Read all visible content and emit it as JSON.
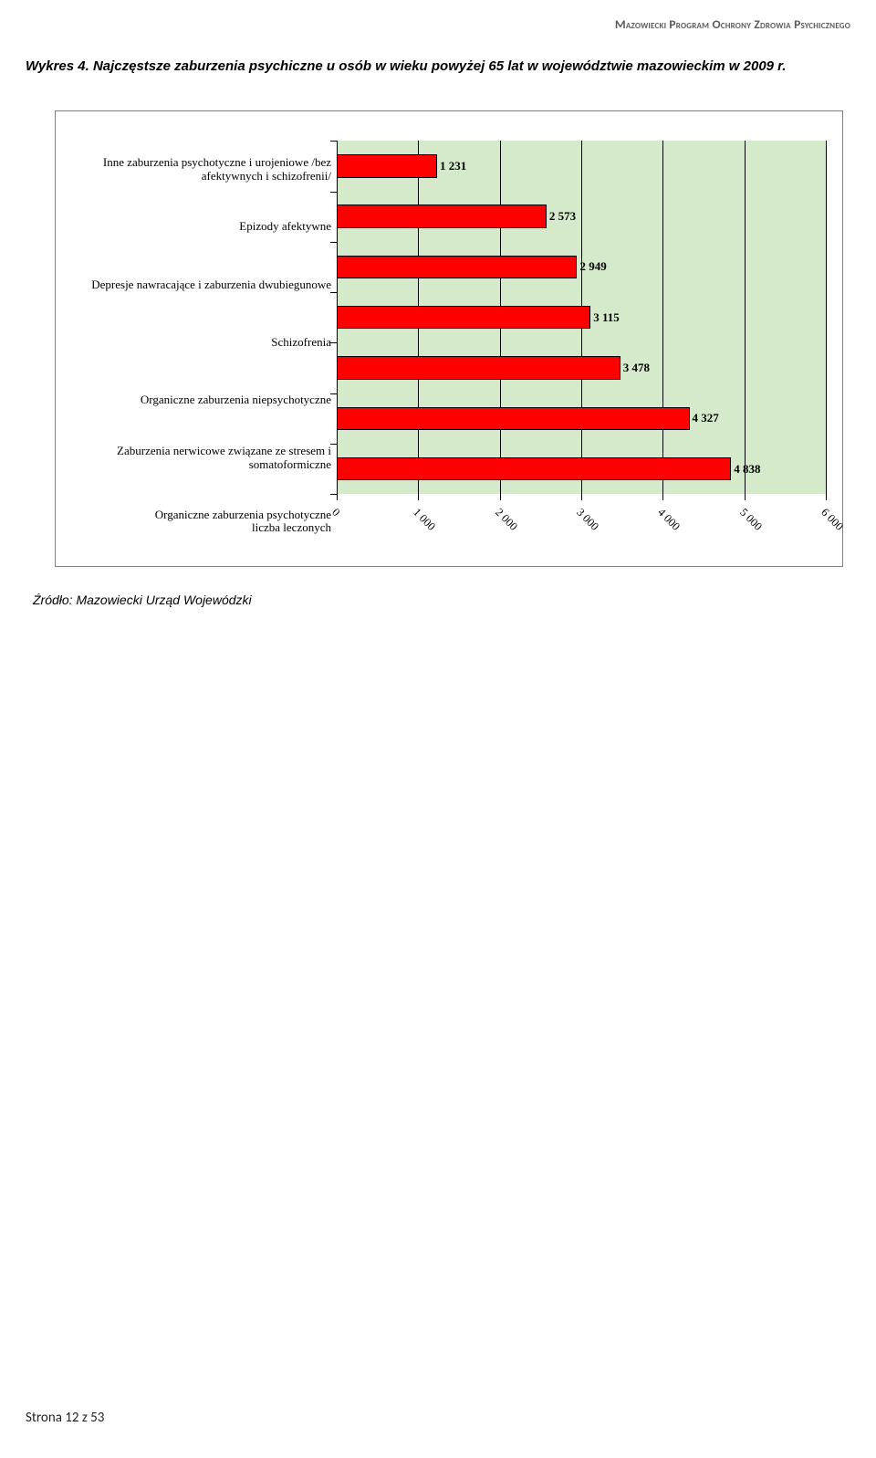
{
  "doc_header": "Mazowiecki Program Ochrony Zdrowia Psychicznego",
  "figure_title": "Wykres 4. Najczęstsze zaburzenia psychiczne u osób w wieku powyżej 65 lat w województwie mazowieckim w 2009 r.",
  "chart": {
    "type": "bar-horizontal",
    "background_color": "#d5eaca",
    "bar_color": "#ff0000",
    "bar_border": "#000000",
    "grid_color": "#000000",
    "axis_color": "#000000",
    "label_fontsize": 13,
    "value_fontsize": 13,
    "x_axis_title": "liczba leczonych",
    "xlim": [
      0,
      6000
    ],
    "xtick_step": 1000,
    "xtick_labels": [
      "0",
      "1 000",
      "2 000",
      "3 000",
      "4 000",
      "5 000",
      "6 000"
    ],
    "categories": [
      {
        "label": "Inne zaburzenia psychotyczne i urojeniowe /bez afektywnych i schizofrenii/",
        "value": 1231,
        "value_label": "1 231"
      },
      {
        "label": "Epizody afektywne",
        "value": 2573,
        "value_label": "2 573"
      },
      {
        "label": "Depresje nawracające i zaburzenia dwubiegunowe",
        "value": 2949,
        "value_label": "2 949"
      },
      {
        "label": "Schizofrenia",
        "value": 3115,
        "value_label": "3 115"
      },
      {
        "label": "Organiczne zaburzenia niepsychotyczne",
        "value": 3478,
        "value_label": "3 478"
      },
      {
        "label": "Zaburzenia nerwicowe związane ze stresem i somatoformiczne",
        "value": 4327,
        "value_label": "4 327"
      },
      {
        "label": "Organiczne zaburzenia psychotyczne",
        "value": 4838,
        "value_label": "4 838"
      }
    ]
  },
  "source_text": "Źródło: Mazowiecki Urząd Wojewódzki",
  "footer_text": "Strona 12 z 53"
}
